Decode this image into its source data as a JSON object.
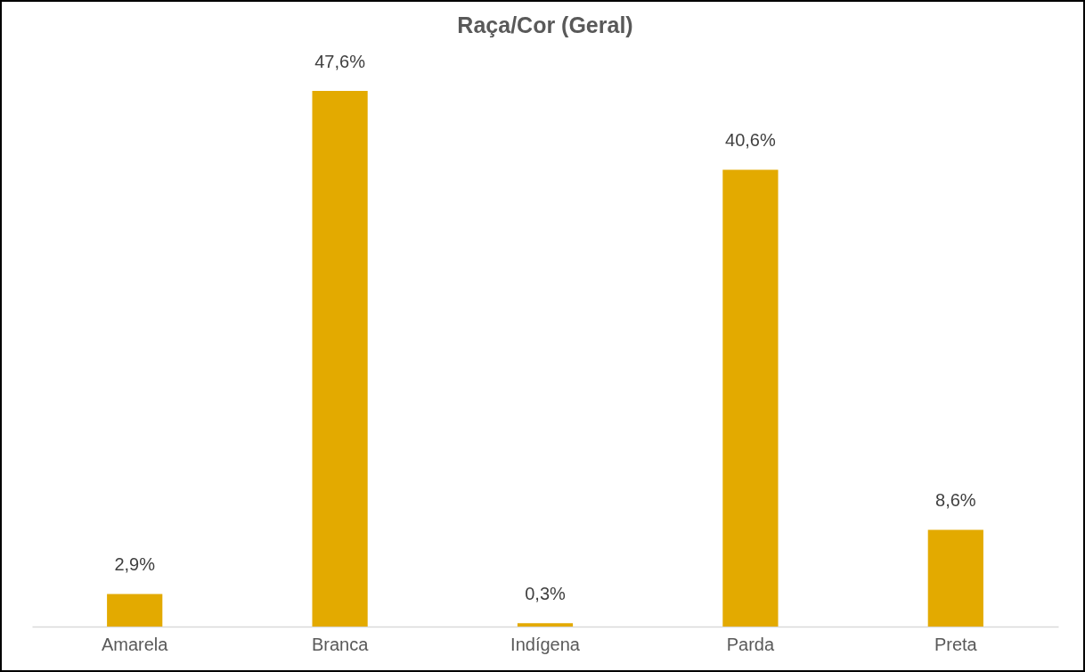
{
  "chart_data": {
    "type": "bar",
    "title": "Raça/Cor (Geral)",
    "categories": [
      "Amarela",
      "Branca",
      "Indígena",
      "Parda",
      "Preta"
    ],
    "values": [
      2.9,
      47.6,
      0.3,
      40.6,
      8.6
    ],
    "value_labels": [
      "2,9%",
      "47,6%",
      "0,3%",
      "40,6%",
      "8,6%"
    ],
    "color": "#e3aa00",
    "grid": false,
    "tick_labels": "x"
  }
}
